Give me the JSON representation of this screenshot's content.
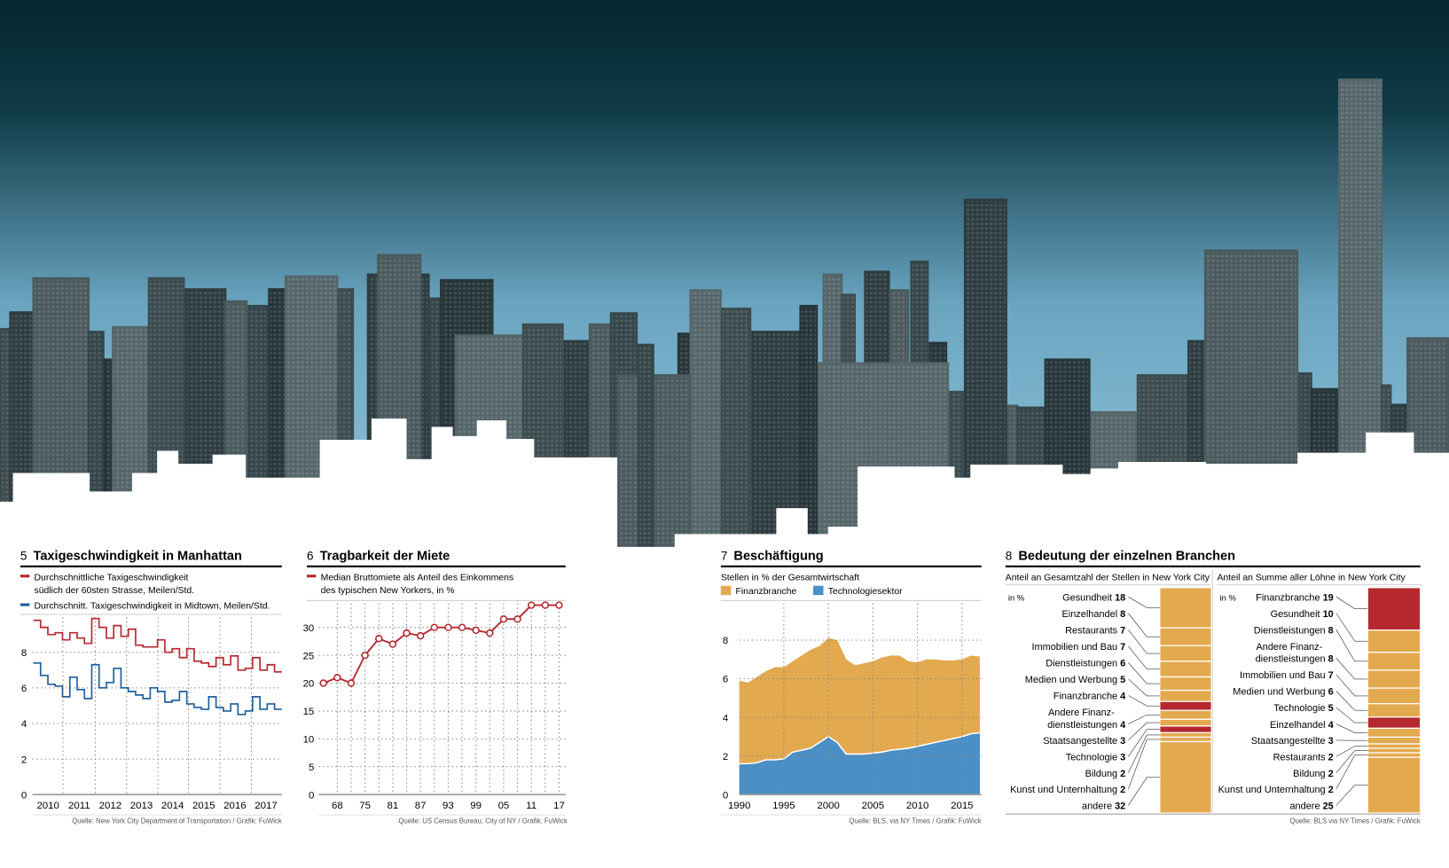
{
  "colors": {
    "red": "#b5282e",
    "blue": "#1f5f9c",
    "orange": "#e3a94f",
    "tech": "#4a8fc6",
    "sky_top": "#06272f",
    "sky_bottom": "#8fc3da"
  },
  "chart_data": [
    {
      "type": "line",
      "number": "5",
      "title": "Taxigeschwindigkeit in Manhattan",
      "legend": [
        "Durchschnittliche Taxigeschwindigkeit",
        "südlich der 60sten Strasse, Meilen/Std.",
        "Durchschnitt. Taxigeschwindigkeit in Midtown, Meilen/Std."
      ],
      "x_ticks": [
        "2010",
        "2011",
        "2012",
        "2013",
        "2014",
        "2015",
        "2016",
        "2017"
      ],
      "y_ticks": [
        "0",
        "2",
        "4",
        "6",
        "8"
      ],
      "ylim": [
        0,
        10
      ],
      "xlim": [
        2009.6,
        2017.9
      ],
      "series": [
        {
          "name": "Südlich der 60sten Strasse",
          "values": [
            9.8,
            9.4,
            9.0,
            9.1,
            8.7,
            9.1,
            8.8,
            8.5,
            9.9,
            9.4,
            8.8,
            9.5,
            8.9,
            9.3,
            8.4,
            8.3,
            8.3,
            8.7,
            8.0,
            8.2,
            7.7,
            8.2,
            7.5,
            7.4,
            7.2,
            7.7,
            7.3,
            7.8,
            7.0,
            7.1,
            7.7,
            7.0,
            7.3,
            6.9
          ]
        },
        {
          "name": "Midtown",
          "values": [
            7.4,
            6.7,
            6.2,
            6.1,
            5.5,
            6.6,
            5.9,
            5.4,
            7.3,
            6.0,
            6.3,
            7.1,
            6.0,
            5.8,
            5.6,
            5.4,
            6.0,
            5.8,
            5.2,
            5.3,
            5.8,
            5.1,
            4.9,
            4.8,
            5.5,
            4.9,
            4.7,
            5.1,
            4.5,
            4.7,
            5.5,
            4.8,
            5.1,
            4.8
          ]
        }
      ],
      "source": "Quelle: New York City Department of Transportation / Grafik: FuWick"
    },
    {
      "type": "line",
      "number": "6",
      "title": "Tragbarkeit der Miete",
      "legend": [
        "Median Bruttomiete als Anteil des Einkommens",
        "des typischen New Yorkers, in %"
      ],
      "x_ticks": [
        "68",
        "75",
        "81",
        "87",
        "93",
        "99",
        "05",
        "11",
        "17"
      ],
      "y_ticks": [
        "0",
        "5",
        "10",
        "15",
        "20",
        "25",
        "30"
      ],
      "ylim": [
        0,
        35
      ],
      "values": [
        20,
        21,
        20,
        25,
        28,
        27,
        29,
        28.5,
        30,
        30,
        30,
        29.5,
        29,
        31.5,
        31.5,
        34,
        34,
        34
      ],
      "source": "Quelle: US Census Bureau, City of NY / Grafik: FuWick"
    },
    {
      "type": "area",
      "number": "7",
      "title": "Beschäftigung",
      "subtitle": "Stellen in % der Gesamtwirtschaft",
      "x": [
        1990,
        1991,
        1992,
        1993,
        1994,
        1995,
        1996,
        1997,
        1998,
        1999,
        2000,
        2001,
        2002,
        2003,
        2004,
        2005,
        2006,
        2007,
        2008,
        2009,
        2010,
        2011,
        2012,
        2013,
        2014,
        2015,
        2016,
        2017
      ],
      "x_ticks": [
        "1990",
        "1995",
        "2000",
        "2005",
        "2010",
        "2015"
      ],
      "y_ticks": [
        "0",
        "2",
        "4",
        "6",
        "8"
      ],
      "ylim": [
        0,
        10
      ],
      "series": [
        {
          "name": "Technologiesektor",
          "values": [
            1.6,
            1.6,
            1.65,
            1.8,
            1.8,
            1.85,
            2.2,
            2.3,
            2.4,
            2.7,
            3.0,
            2.7,
            2.1,
            2.1,
            2.1,
            2.15,
            2.2,
            2.3,
            2.35,
            2.4,
            2.5,
            2.6,
            2.7,
            2.8,
            2.9,
            3.0,
            3.15,
            3.2
          ]
        },
        {
          "name": "Finanzbranche",
          "values": [
            4.3,
            4.2,
            4.45,
            4.6,
            4.8,
            4.75,
            4.7,
            4.9,
            5.1,
            5.0,
            5.1,
            5.3,
            4.9,
            4.6,
            4.7,
            4.75,
            4.9,
            4.9,
            4.85,
            4.5,
            4.35,
            4.4,
            4.3,
            4.15,
            4.05,
            4.0,
            4.05,
            3.95
          ]
        }
      ],
      "stacked": true,
      "source": "Quelle: BLS, via NY Times / Grafik: FuWick"
    },
    {
      "type": "bar",
      "number": "8",
      "title": "Bedeutung der einzelnen Branchen",
      "unit": "in %",
      "panels": [
        {
          "heading": "Anteil an Gesamtzahl der Stellen in New York City",
          "items": [
            {
              "label": "Gesundheit",
              "value": 18
            },
            {
              "label": "Einzelhandel",
              "value": 8
            },
            {
              "label": "Restaurants",
              "value": 7
            },
            {
              "label": "Immobilien und Bau",
              "value": 7
            },
            {
              "label": "Dienstleistungen",
              "value": 6
            },
            {
              "label": "Medien und Werbung",
              "value": 5
            },
            {
              "label": "Finanzbranche",
              "value": 4,
              "highlight": true
            },
            {
              "label": "Andere Finanz-",
              "label2": "dienstleistungen",
              "value": 4
            },
            {
              "label": "Staatsangestellte",
              "value": 3
            },
            {
              "label": "Technologie",
              "value": 3,
              "highlight": true
            },
            {
              "label": "Bildung",
              "value": 2
            },
            {
              "label": "Kunst und Unternhaltung",
              "value": 2
            },
            {
              "label": "andere",
              "value": 32
            }
          ]
        },
        {
          "heading": "Anteil an Summe aller Löhne in New York City",
          "items": [
            {
              "label": "Finanzbranche",
              "value": 19,
              "highlight": true
            },
            {
              "label": "Gesundheit",
              "value": 10
            },
            {
              "label": "Dienstleistungen",
              "value": 8
            },
            {
              "label": "Andere Finanz-",
              "label2": "dienstleistungen",
              "value": 8
            },
            {
              "label": "Immobilien und Bau",
              "value": 7
            },
            {
              "label": "Medien und Werbung",
              "value": 6
            },
            {
              "label": "Technologie",
              "value": 5,
              "highlight": true
            },
            {
              "label": "Einzelhandel",
              "value": 4
            },
            {
              "label": "Staatsangestellte",
              "value": 3
            },
            {
              "label": "Restaurants",
              "value": 2
            },
            {
              "label": "Bildung",
              "value": 2
            },
            {
              "label": "Kunst und Unternhaltung",
              "value": 2
            },
            {
              "label": "andere",
              "value": 25
            }
          ]
        }
      ],
      "source": "Quelle: BLS via NY Times / Grafik: FuWick"
    }
  ]
}
